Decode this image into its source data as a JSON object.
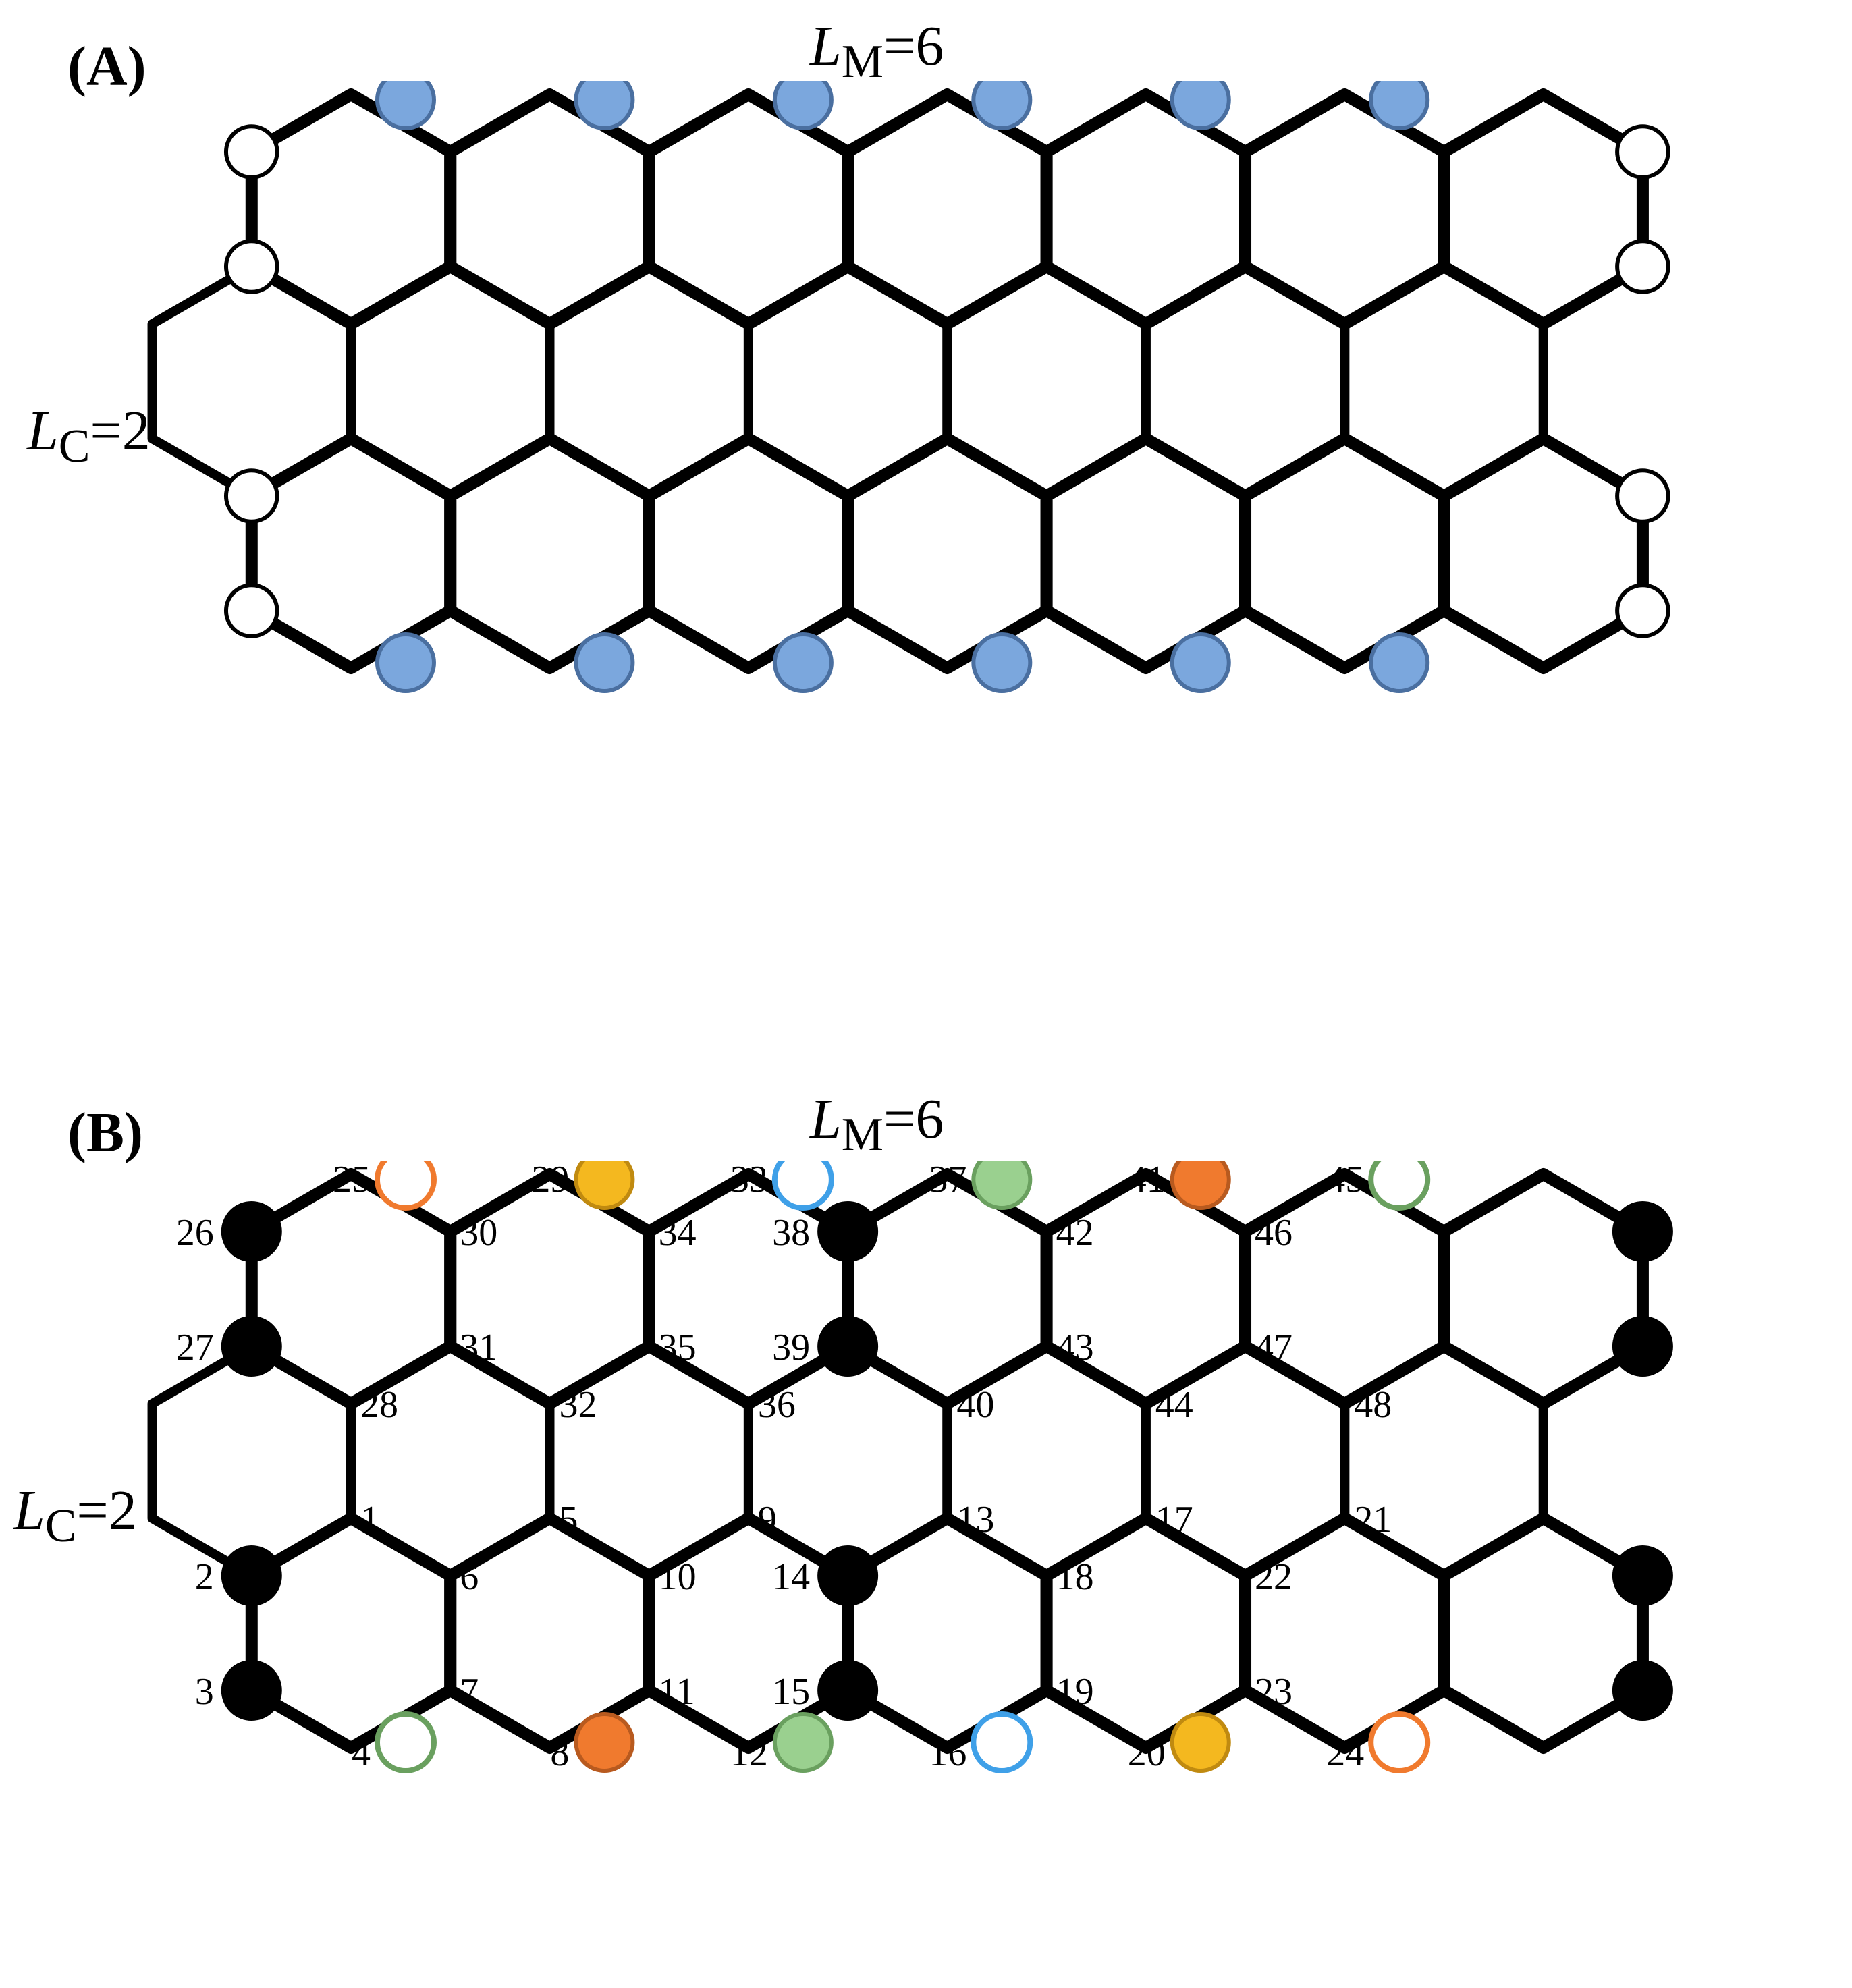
{
  "panels": {
    "A": {
      "label": "(A)",
      "LM_text": "LM=6",
      "LC_text": "LC=2"
    },
    "B": {
      "label": "(B)",
      "LM_text": "LM=6",
      "LC_text": "LC=2"
    }
  },
  "lattice": {
    "LM": 6,
    "LC": 2,
    "cols": 7,
    "rows": 3,
    "side": 170,
    "line_width_outer": 18,
    "line_width_inner": 14,
    "circle_stroke": 6,
    "small_r": 42,
    "big_r": 44,
    "colors": {
      "black": "#000000",
      "white": "#ffffff",
      "blue_fill": "#7ba7dd",
      "blue_stroke": "#4a6fa0",
      "orange_fill": "#f07a2e",
      "orange_stroke": "#b85a1f",
      "yellow_fill": "#f4b81f",
      "yellow_stroke": "#c08a10",
      "green_fill": "#9ad08f",
      "green_stroke": "#6aa05f",
      "lightblue_stroke": "#3fa0e8"
    }
  },
  "panelB_sites": [
    {
      "n": 1,
      "nc": 0,
      "v": "ul",
      "col": "none"
    },
    {
      "n": 2,
      "nc": 0,
      "v": "l1",
      "col": "black"
    },
    {
      "n": 3,
      "nc": 0,
      "v": "l2",
      "col": "black"
    },
    {
      "n": 4,
      "nc": 0,
      "v": "ll",
      "col": "green_open"
    },
    {
      "n": 5,
      "nc": 1,
      "v": "ul",
      "col": "none"
    },
    {
      "n": 6,
      "nc": 1,
      "v": "l1",
      "col": "none"
    },
    {
      "n": 7,
      "nc": 1,
      "v": "l2",
      "col": "none"
    },
    {
      "n": 8,
      "nc": 1,
      "v": "ll",
      "col": "orange_solid"
    },
    {
      "n": 9,
      "nc": 2,
      "v": "ul",
      "col": "none"
    },
    {
      "n": 10,
      "nc": 2,
      "v": "l1",
      "col": "none"
    },
    {
      "n": 11,
      "nc": 2,
      "v": "l2",
      "col": "none"
    },
    {
      "n": 12,
      "nc": 2,
      "v": "ll",
      "col": "green_solid"
    },
    {
      "n": 13,
      "nc": 3,
      "v": "ul",
      "col": "none"
    },
    {
      "n": 14,
      "nc": 3,
      "v": "l1",
      "col": "black"
    },
    {
      "n": 15,
      "nc": 3,
      "v": "l2",
      "col": "black"
    },
    {
      "n": 16,
      "nc": 3,
      "v": "ll",
      "col": "blue_open"
    },
    {
      "n": 17,
      "nc": 4,
      "v": "ul",
      "col": "none"
    },
    {
      "n": 18,
      "nc": 4,
      "v": "l1",
      "col": "none"
    },
    {
      "n": 19,
      "nc": 4,
      "v": "l2",
      "col": "none"
    },
    {
      "n": 20,
      "nc": 4,
      "v": "ll",
      "col": "yellow_solid"
    },
    {
      "n": 21,
      "nc": 5,
      "v": "ul",
      "col": "none"
    },
    {
      "n": 22,
      "nc": 5,
      "v": "l1",
      "col": "none"
    },
    {
      "n": 23,
      "nc": 5,
      "v": "l2",
      "col": "none"
    },
    {
      "n": 24,
      "nc": 5,
      "v": "ll",
      "col": "orange_open"
    },
    {
      "n": 25,
      "nc": 0,
      "v": "uu",
      "col": "orange_open"
    },
    {
      "n": 26,
      "nc": 0,
      "v": "u1",
      "col": "black"
    },
    {
      "n": 27,
      "nc": 0,
      "v": "u2",
      "col": "black"
    },
    {
      "n": 28,
      "nc": 0,
      "v": "ub",
      "col": "none"
    },
    {
      "n": 29,
      "nc": 1,
      "v": "uu",
      "col": "yellow_solid"
    },
    {
      "n": 30,
      "nc": 1,
      "v": "u1",
      "col": "none"
    },
    {
      "n": 31,
      "nc": 1,
      "v": "u2",
      "col": "none"
    },
    {
      "n": 32,
      "nc": 1,
      "v": "ub",
      "col": "none"
    },
    {
      "n": 33,
      "nc": 2,
      "v": "uu",
      "col": "blue_open"
    },
    {
      "n": 34,
      "nc": 2,
      "v": "u1",
      "col": "none"
    },
    {
      "n": 35,
      "nc": 2,
      "v": "u2",
      "col": "none"
    },
    {
      "n": 36,
      "nc": 2,
      "v": "ub",
      "col": "none"
    },
    {
      "n": 37,
      "nc": 3,
      "v": "uu",
      "col": "green_solid"
    },
    {
      "n": 38,
      "nc": 3,
      "v": "u1",
      "col": "black"
    },
    {
      "n": 39,
      "nc": 3,
      "v": "u2",
      "col": "black"
    },
    {
      "n": 40,
      "nc": 3,
      "v": "ub",
      "col": "none"
    },
    {
      "n": 41,
      "nc": 4,
      "v": "uu",
      "col": "orange_solid"
    },
    {
      "n": 42,
      "nc": 4,
      "v": "u1",
      "col": "none"
    },
    {
      "n": 43,
      "nc": 4,
      "v": "u2",
      "col": "none"
    },
    {
      "n": 44,
      "nc": 4,
      "v": "ub",
      "col": "none"
    },
    {
      "n": 45,
      "nc": 5,
      "v": "uu",
      "col": "green_open"
    },
    {
      "n": 46,
      "nc": 5,
      "v": "u1",
      "col": "none"
    },
    {
      "n": 47,
      "nc": 5,
      "v": "u2",
      "col": "none"
    },
    {
      "n": 48,
      "nc": 5,
      "v": "ub",
      "col": "none"
    }
  ],
  "panelB_right_black": [
    {
      "nc": 6,
      "v": "u1"
    },
    {
      "nc": 6,
      "v": "u2"
    },
    {
      "nc": 6,
      "v": "l1"
    },
    {
      "nc": 6,
      "v": "l2"
    }
  ]
}
